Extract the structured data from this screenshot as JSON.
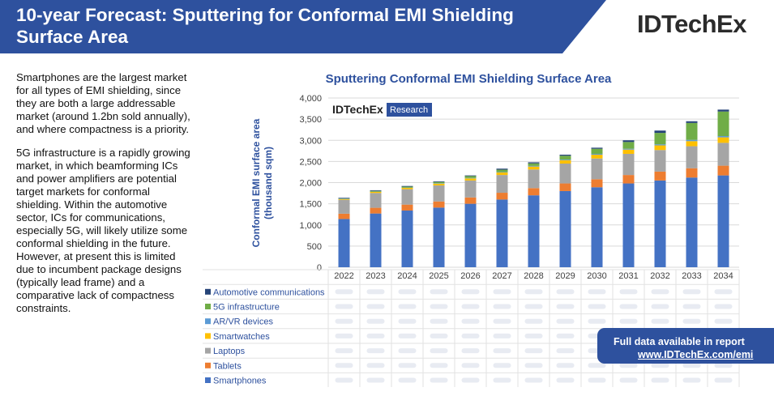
{
  "header": {
    "title": "10-year Forecast: Sputtering for Conformal EMI Shielding Surface Area",
    "logo": "IDTechEx",
    "colors": {
      "banner": "#2e519e",
      "accent": "#2e519e"
    }
  },
  "body_text": [
    "Smartphones are the largest market for all types of EMI shielding, since they are both a large addressable market (around 1.2bn sold annually), and where compactness is a priority.",
    "5G infrastructure is a rapidly growing market, in which beamforming ICs and power amplifiers are potential target markets for conformal shielding. Within the automotive sector, ICs for communications, especially 5G, will likely utilize some conformal shielding in the future. However, at present this is limited due to incumbent package designs (typically lead frame) and a comparative lack of compactness constraints."
  ],
  "callout": {
    "line1": "Full data available in report",
    "line2": "www.IDTechEx.com/emi"
  },
  "chart_data": {
    "type": "bar",
    "stacked": true,
    "title": "Sputtering Conformal EMI Shielding Surface Area",
    "ylabel": "Conformal EMI surface area (thousand sqm)",
    "ylim": [
      0,
      4000
    ],
    "yticks": [
      "0",
      "500",
      "1,000",
      "1,500",
      "2,000",
      "2,500",
      "3,000",
      "3,500",
      "4,000"
    ],
    "watermark": {
      "brand": "IDTechEx",
      "tag": "Research"
    },
    "grid": true,
    "categories": [
      "2022",
      "2023",
      "2024",
      "2025",
      "2026",
      "2027",
      "2028",
      "2029",
      "2030",
      "2031",
      "2032",
      "2033",
      "2034"
    ],
    "series": [
      {
        "name": "Smartphones",
        "color": "#4472c4",
        "values": [
          1140,
          1270,
          1340,
          1410,
          1500,
          1600,
          1700,
          1800,
          1890,
          1980,
          2050,
          2120,
          2170
        ]
      },
      {
        "name": "Tablets",
        "color": "#ed7d31",
        "values": [
          125,
          135,
          140,
          145,
          150,
          160,
          170,
          180,
          190,
          200,
          210,
          220,
          230
        ]
      },
      {
        "name": "Laptops",
        "color": "#a5a5a5",
        "values": [
          330,
          350,
          365,
          380,
          400,
          420,
          440,
          470,
          490,
          500,
          510,
          520,
          540
        ]
      },
      {
        "name": "Smartwatches",
        "color": "#ffc000",
        "values": [
          15,
          25,
          30,
          40,
          50,
          60,
          70,
          80,
          90,
          100,
          110,
          120,
          130
        ]
      },
      {
        "name": "AR/VR devices",
        "color": "#5b9bd5",
        "values": [
          5,
          5,
          5,
          10,
          10,
          10,
          15,
          15,
          20,
          20,
          25,
          30,
          30
        ]
      },
      {
        "name": "5G infrastructure",
        "color": "#70ad47",
        "values": [
          10,
          20,
          25,
          30,
          45,
          55,
          60,
          90,
          120,
          160,
          270,
          400,
          580
        ]
      },
      {
        "name": "Automotive communications",
        "color": "#264478",
        "values": [
          15,
          15,
          15,
          15,
          15,
          25,
          25,
          25,
          25,
          40,
          55,
          40,
          45
        ]
      }
    ]
  }
}
